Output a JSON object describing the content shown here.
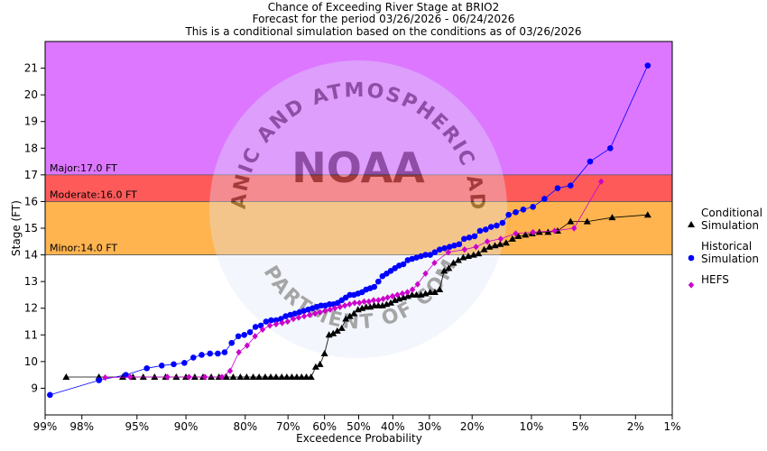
{
  "titles": {
    "line1": "Chance of Exceeding River Stage at BRIO2",
    "line2": "Forecast for the period 03/26/2026 - 06/24/2026",
    "line3": "This is a conditional simulation based on the conditions as of 03/26/2026"
  },
  "watermark": {
    "logo_text": "NOAA",
    "ring_top": "NATIONAL OCEANIC AND ATMOSPHERIC ADMINISTRATION",
    "ring_bottom": "U.S. DEPARTMENT OF COMMERCE"
  },
  "colors": {
    "major": "#DD77FF",
    "moderate": "#FF5A5A",
    "minor": "#FFB450",
    "conditional": "#000000",
    "historical": "#0000FF",
    "hefs": "#CC00CC",
    "watermark": "#DDE6F7"
  },
  "chart_data": {
    "type": "scatter",
    "title": "Chance of Exceeding River Stage at BRIO2",
    "xlabel": "Exceedence Probability",
    "ylabel": "Stage (FT)",
    "x_scale": "normal-probability",
    "x_ticks": [
      {
        "p": 99,
        "label": "99%"
      },
      {
        "p": 98,
        "label": "98%"
      },
      {
        "p": 95,
        "label": "95%"
      },
      {
        "p": 90,
        "label": "90%"
      },
      {
        "p": 80,
        "label": "80%"
      },
      {
        "p": 70,
        "label": "70%"
      },
      {
        "p": 60,
        "label": "60%"
      },
      {
        "p": 50,
        "label": "50%"
      },
      {
        "p": 40,
        "label": "40%"
      },
      {
        "p": 30,
        "label": "30%"
      },
      {
        "p": 20,
        "label": "20%"
      },
      {
        "p": 10,
        "label": "10%"
      },
      {
        "p": 5,
        "label": "5%"
      },
      {
        "p": 2,
        "label": "2%"
      },
      {
        "p": 1,
        "label": "1%"
      }
    ],
    "xlim": [
      99,
      1
    ],
    "ylim": [
      8.0,
      22.0
    ],
    "y_ticks": [
      9,
      10,
      11,
      12,
      13,
      14,
      15,
      16,
      17,
      18,
      19,
      20,
      21
    ],
    "flood_categories": [
      {
        "name": "Major",
        "label": "Major:17.0 FT",
        "from": 17.0,
        "to": 22.0
      },
      {
        "name": "Moderate",
        "label": "Moderate:16.0 FT",
        "from": 16.0,
        "to": 17.0
      },
      {
        "name": "Minor",
        "label": "Minor:14.0 FT",
        "from": 14.0,
        "to": 16.0
      }
    ],
    "legend": {
      "position": "right",
      "entries": [
        {
          "series": "conditional",
          "lines": [
            "Conditional",
            "Simulation"
          ]
        },
        {
          "series": "historical",
          "lines": [
            "Historical",
            "Simulation"
          ]
        },
        {
          "series": "hefs",
          "lines": [
            "HEFS"
          ]
        }
      ]
    },
    "series": [
      {
        "name": "Conditional Simulation",
        "key": "conditional",
        "marker": "triangle",
        "points": [
          [
            98.5,
            9.42
          ],
          [
            97.3,
            9.42
          ],
          [
            96,
            9.42
          ],
          [
            95.3,
            9.42
          ],
          [
            94.5,
            9.42
          ],
          [
            93.5,
            9.42
          ],
          [
            92.4,
            9.42
          ],
          [
            91.2,
            9.42
          ],
          [
            90,
            9.42
          ],
          [
            88.8,
            9.42
          ],
          [
            87.6,
            9.42
          ],
          [
            86.3,
            9.42
          ],
          [
            85,
            9.42
          ],
          [
            83.7,
            9.42
          ],
          [
            82.4,
            9.42
          ],
          [
            81,
            9.42
          ],
          [
            79.7,
            9.42
          ],
          [
            78.3,
            9.42
          ],
          [
            77,
            9.42
          ],
          [
            75.6,
            9.42
          ],
          [
            74.3,
            9.42
          ],
          [
            73,
            9.42
          ],
          [
            71.6,
            9.42
          ],
          [
            70.3,
            9.42
          ],
          [
            69,
            9.42
          ],
          [
            67.7,
            9.42
          ],
          [
            66.4,
            9.42
          ],
          [
            65.1,
            9.42
          ],
          [
            63.8,
            9.42
          ],
          [
            62.5,
            9.8
          ],
          [
            61.3,
            9.9
          ],
          [
            60,
            10.3
          ],
          [
            58.7,
            11.0
          ],
          [
            57.5,
            11.05
          ],
          [
            56.3,
            11.15
          ],
          [
            55,
            11.25
          ],
          [
            53.8,
            11.6
          ],
          [
            52.6,
            11.7
          ],
          [
            51.4,
            11.8
          ],
          [
            50.2,
            11.95
          ],
          [
            49,
            12.0
          ],
          [
            47.8,
            12.05
          ],
          [
            46.6,
            12.05
          ],
          [
            45.4,
            12.1
          ],
          [
            44.2,
            12.1
          ],
          [
            43,
            12.1
          ],
          [
            41.8,
            12.15
          ],
          [
            40.6,
            12.2
          ],
          [
            39.4,
            12.3
          ],
          [
            38.2,
            12.35
          ],
          [
            37,
            12.4
          ],
          [
            35.8,
            12.45
          ],
          [
            34.6,
            12.5
          ],
          [
            33.4,
            12.5
          ],
          [
            32.2,
            12.5
          ],
          [
            31,
            12.55
          ],
          [
            29.8,
            12.6
          ],
          [
            28.6,
            12.6
          ],
          [
            27.4,
            12.7
          ],
          [
            26.3,
            13.4
          ],
          [
            25.2,
            13.5
          ],
          [
            24.1,
            13.7
          ],
          [
            23,
            13.8
          ],
          [
            21.9,
            13.9
          ],
          [
            20.8,
            13.95
          ],
          [
            19.7,
            14.0
          ],
          [
            18.7,
            14.05
          ],
          [
            17.6,
            14.2
          ],
          [
            16.6,
            14.3
          ],
          [
            15.6,
            14.35
          ],
          [
            14.7,
            14.4
          ],
          [
            13.7,
            14.45
          ],
          [
            12.7,
            14.6
          ],
          [
            11.8,
            14.7
          ],
          [
            10.8,
            14.75
          ],
          [
            9.9,
            14.8
          ],
          [
            9,
            14.85
          ],
          [
            8,
            14.85
          ],
          [
            7,
            14.9
          ],
          [
            5.8,
            15.25
          ],
          [
            4.5,
            15.25
          ],
          [
            3.0,
            15.4
          ],
          [
            1.6,
            15.5
          ]
        ]
      },
      {
        "name": "Historical Simulation",
        "key": "historical",
        "marker": "circle",
        "points": [
          [
            98.9,
            8.75
          ],
          [
            97.3,
            9.3
          ],
          [
            95.8,
            9.5
          ],
          [
            94.2,
            9.75
          ],
          [
            92.8,
            9.85
          ],
          [
            91.5,
            9.9
          ],
          [
            90.2,
            9.95
          ],
          [
            89,
            10.15
          ],
          [
            87.8,
            10.25
          ],
          [
            86.5,
            10.3
          ],
          [
            85.2,
            10.3
          ],
          [
            84,
            10.35
          ],
          [
            82.7,
            10.7
          ],
          [
            81.4,
            10.95
          ],
          [
            80.2,
            11.0
          ],
          [
            79,
            11.1
          ],
          [
            77.8,
            11.3
          ],
          [
            76.6,
            11.35
          ],
          [
            75.4,
            11.5
          ],
          [
            74.2,
            11.55
          ],
          [
            73,
            11.55
          ],
          [
            71.8,
            11.6
          ],
          [
            70.6,
            11.7
          ],
          [
            69.4,
            11.75
          ],
          [
            68.2,
            11.8
          ],
          [
            67,
            11.85
          ],
          [
            65.8,
            11.9
          ],
          [
            64.6,
            11.95
          ],
          [
            63.4,
            12.0
          ],
          [
            62.2,
            12.05
          ],
          [
            61,
            12.1
          ],
          [
            59.8,
            12.1
          ],
          [
            58.6,
            12.15
          ],
          [
            57.4,
            12.15
          ],
          [
            56.2,
            12.2
          ],
          [
            55,
            12.3
          ],
          [
            53.8,
            12.4
          ],
          [
            52.6,
            12.5
          ],
          [
            51.4,
            12.5
          ],
          [
            50.2,
            12.55
          ],
          [
            49,
            12.6
          ],
          [
            47.8,
            12.7
          ],
          [
            46.6,
            12.75
          ],
          [
            45.4,
            12.8
          ],
          [
            44.2,
            13.0
          ],
          [
            43,
            13.2
          ],
          [
            41.8,
            13.3
          ],
          [
            40.6,
            13.4
          ],
          [
            39.4,
            13.5
          ],
          [
            38.2,
            13.6
          ],
          [
            37,
            13.65
          ],
          [
            35.8,
            13.8
          ],
          [
            34.6,
            13.85
          ],
          [
            33.4,
            13.9
          ],
          [
            32.2,
            13.95
          ],
          [
            31,
            14.0
          ],
          [
            29.8,
            14.0
          ],
          [
            28.6,
            14.1
          ],
          [
            27.4,
            14.2
          ],
          [
            26.2,
            14.25
          ],
          [
            25,
            14.3
          ],
          [
            23.9,
            14.35
          ],
          [
            22.8,
            14.4
          ],
          [
            21.7,
            14.6
          ],
          [
            20.6,
            14.65
          ],
          [
            19.5,
            14.7
          ],
          [
            18.4,
            14.9
          ],
          [
            17.3,
            14.95
          ],
          [
            16.3,
            15.05
          ],
          [
            15.3,
            15.1
          ],
          [
            14.3,
            15.2
          ],
          [
            13.3,
            15.5
          ],
          [
            12.2,
            15.6
          ],
          [
            11.1,
            15.7
          ],
          [
            9.8,
            15.8
          ],
          [
            8.4,
            16.1
          ],
          [
            7.0,
            16.5
          ],
          [
            5.8,
            16.6
          ],
          [
            4.3,
            17.5
          ],
          [
            3.1,
            18.0
          ],
          [
            1.6,
            21.1
          ]
        ]
      },
      {
        "name": "HEFS",
        "key": "hefs",
        "marker": "diamond",
        "points": [
          [
            97.0,
            9.4
          ],
          [
            95.5,
            9.42
          ],
          [
            92.2,
            9.42
          ],
          [
            89.6,
            9.42
          ],
          [
            87.3,
            9.42
          ],
          [
            84.5,
            9.42
          ],
          [
            83.0,
            9.65
          ],
          [
            81.3,
            10.35
          ],
          [
            79.6,
            10.6
          ],
          [
            77.9,
            10.95
          ],
          [
            76.2,
            11.2
          ],
          [
            74.5,
            11.35
          ],
          [
            73.0,
            11.4
          ],
          [
            71.5,
            11.45
          ],
          [
            70.1,
            11.5
          ],
          [
            68.6,
            11.6
          ],
          [
            67.2,
            11.65
          ],
          [
            65.7,
            11.7
          ],
          [
            64.2,
            11.75
          ],
          [
            62.7,
            11.8
          ],
          [
            61.3,
            11.85
          ],
          [
            59.8,
            11.9
          ],
          [
            58.4,
            11.95
          ],
          [
            57.0,
            12.0
          ],
          [
            55.5,
            12.05
          ],
          [
            54.1,
            12.1
          ],
          [
            52.7,
            12.15
          ],
          [
            51.2,
            12.2
          ],
          [
            49.8,
            12.2
          ],
          [
            48.4,
            12.25
          ],
          [
            47.0,
            12.25
          ],
          [
            45.6,
            12.3
          ],
          [
            44.2,
            12.3
          ],
          [
            42.8,
            12.35
          ],
          [
            41.5,
            12.4
          ],
          [
            40.1,
            12.45
          ],
          [
            38.7,
            12.5
          ],
          [
            37.3,
            12.55
          ],
          [
            35.9,
            12.6
          ],
          [
            34.5,
            12.7
          ],
          [
            33.1,
            12.9
          ],
          [
            31.0,
            13.3
          ],
          [
            28.7,
            13.7
          ],
          [
            25.3,
            14.1
          ],
          [
            21.6,
            14.2
          ],
          [
            19.2,
            14.3
          ],
          [
            17.0,
            14.5
          ],
          [
            14.6,
            14.6
          ],
          [
            12.2,
            14.8
          ],
          [
            9.8,
            14.85
          ],
          [
            7.3,
            14.9
          ],
          [
            5.5,
            15.0
          ],
          [
            3.6,
            16.75
          ]
        ]
      }
    ]
  }
}
